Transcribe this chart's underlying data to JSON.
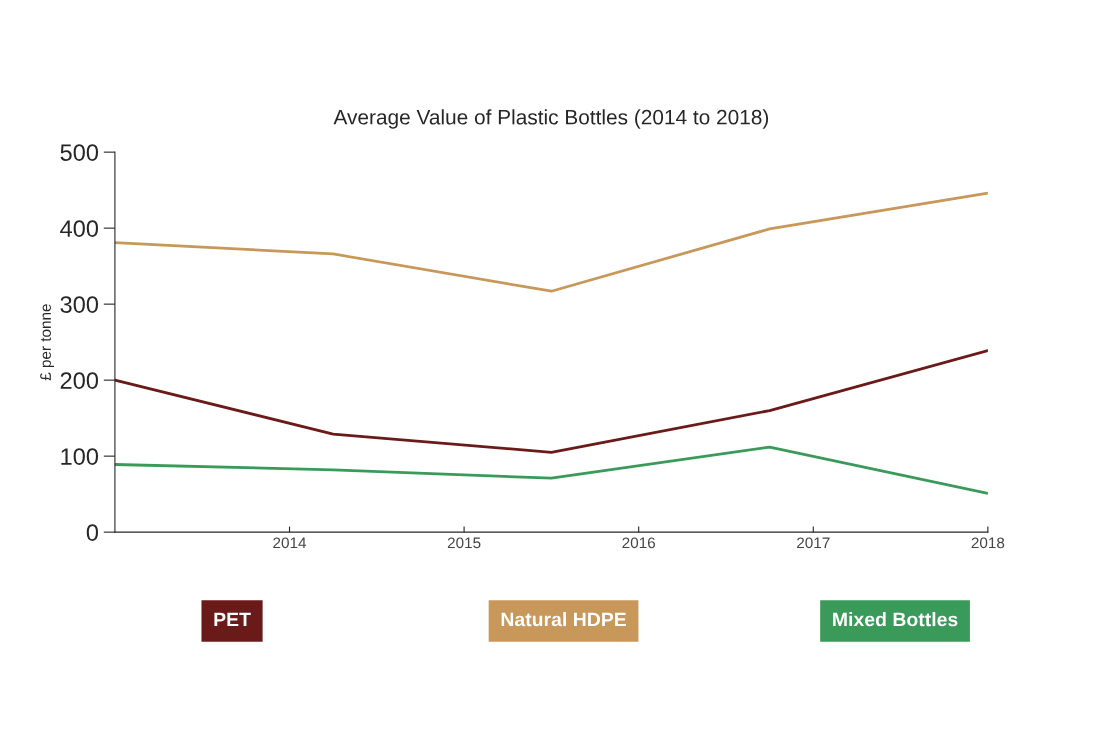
{
  "chart_data": {
    "type": "line",
    "title": "Average Value of Plastic Bottles (2014 to 2018)",
    "ylabel": "£ per tonne",
    "x": [
      2013,
      2014.25,
      2015.5,
      2016.75,
      2018
    ],
    "series": [
      {
        "name": "PET",
        "color": "#6b1a1a",
        "values": [
          200,
          129,
          105,
          160,
          239
        ]
      },
      {
        "name": "Natural HDPE",
        "color": "#c8975a",
        "values": [
          381,
          366,
          317,
          399,
          446
        ]
      },
      {
        "name": "Mixed Bottles",
        "color": "#3a9a5a",
        "values": [
          89,
          82,
          71,
          112,
          51
        ]
      }
    ],
    "xlim": [
      2013,
      2018
    ],
    "xticks": [
      2014,
      2015,
      2016,
      2017,
      2018
    ],
    "ylim": [
      0,
      500
    ],
    "yticks": [
      0,
      100,
      200,
      300,
      400,
      500
    ],
    "grid": false,
    "legend": "bottom",
    "marker": "none",
    "line_style": "solid"
  }
}
